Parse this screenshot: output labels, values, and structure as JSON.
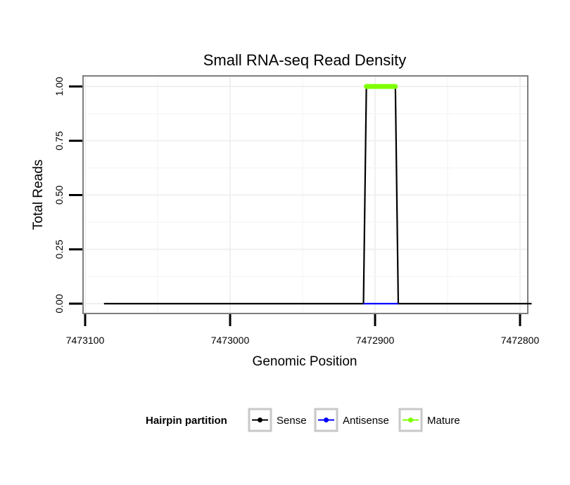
{
  "chart_data": {
    "type": "line",
    "title": "Small RNA-seq Read Density",
    "xlabel": "Genomic Position",
    "ylabel": "Total Reads",
    "x_reversed": true,
    "xlim": [
      7473100,
      7472800
    ],
    "ylim": [
      0,
      1
    ],
    "x_ticks": [
      7473100,
      7473000,
      7472900,
      7472800
    ],
    "x_tick_labels": [
      "7473100",
      "7473000",
      "7472900",
      "7472800"
    ],
    "y_ticks": [
      0,
      0.25,
      0.5,
      0.75,
      1
    ],
    "y_tick_labels": [
      "0.00",
      "0.25",
      "0.50",
      "0.75",
      "1.00"
    ],
    "grid": true,
    "legend_position": "bottom",
    "legend_title": "Hairpin partition",
    "series": [
      {
        "name": "Sense",
        "color": "#000000",
        "x": [
          7473087,
          7472908,
          7472906,
          7472886,
          7472884,
          7472792
        ],
        "y": [
          0,
          0,
          1,
          1,
          0,
          0
        ]
      },
      {
        "name": "Antisense",
        "color": "#0000ff",
        "x": [
          7472908,
          7472884
        ],
        "y": [
          0,
          0
        ]
      },
      {
        "name": "Mature",
        "color": "#7fff00",
        "x": [
          7472906,
          7472886
        ],
        "y": [
          1,
          1
        ]
      }
    ]
  }
}
